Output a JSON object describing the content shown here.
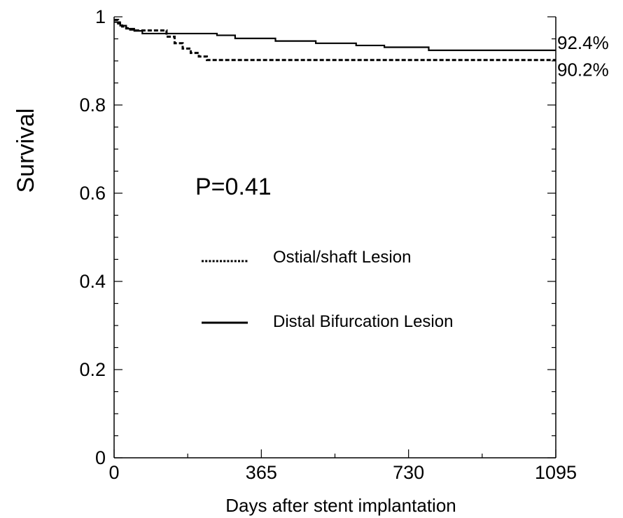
{
  "chart_data": {
    "type": "line",
    "step": true,
    "title": "",
    "xlabel": "Days after stent implantation",
    "ylabel": "Survival",
    "xlim": [
      0,
      1095
    ],
    "ylim": [
      0,
      1
    ],
    "xticks": [
      0,
      365,
      730,
      1095
    ],
    "xtick_labels": [
      "0",
      "365",
      "730",
      "1095"
    ],
    "yticks": [
      0,
      0.2,
      0.4,
      0.6,
      0.8,
      1
    ],
    "ytick_labels": [
      "0",
      "0.2",
      "0.4",
      "0.6",
      "0.8",
      "1"
    ],
    "grid": false,
    "legend_position": "center",
    "annotation": "P=0.41",
    "series": [
      {
        "name": "Ostial/shaft Lesion",
        "line_style": "dashed",
        "end_label": "90.2%",
        "x": [
          0,
          10,
          20,
          30,
          40,
          50,
          60,
          110,
          130,
          150,
          170,
          190,
          210,
          230,
          1095
        ],
        "y": [
          0.993,
          0.985,
          0.978,
          0.974,
          0.971,
          0.969,
          0.969,
          0.969,
          0.955,
          0.94,
          0.928,
          0.918,
          0.91,
          0.902,
          0.902
        ]
      },
      {
        "name": "Distal Bifurcation Lesion",
        "line_style": "solid",
        "end_label": "92.4%",
        "x": [
          0,
          15,
          30,
          50,
          70,
          240,
          255,
          300,
          400,
          500,
          600,
          670,
          780,
          1095
        ],
        "y": [
          0.988,
          0.98,
          0.973,
          0.968,
          0.962,
          0.962,
          0.958,
          0.951,
          0.945,
          0.94,
          0.935,
          0.931,
          0.924,
          0.924
        ]
      }
    ]
  }
}
